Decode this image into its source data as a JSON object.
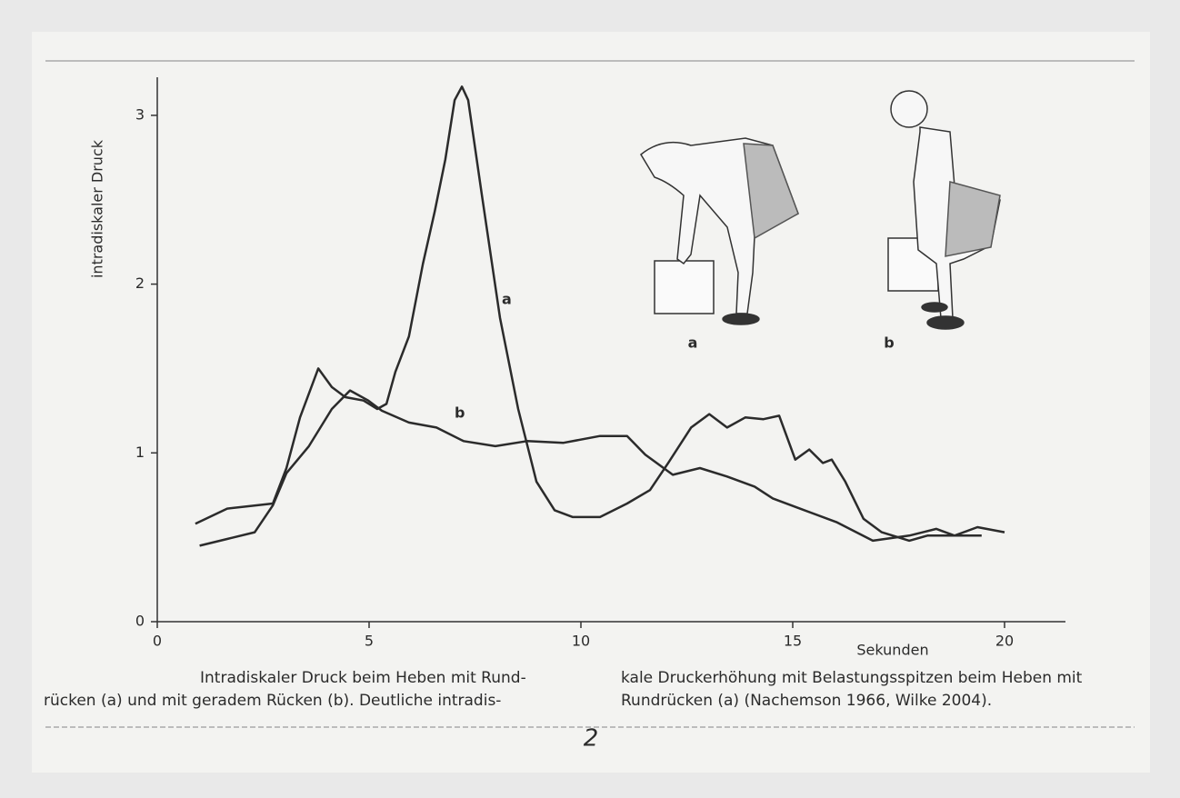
{
  "chart_data": {
    "type": "line",
    "y_label": "intradiskaler Druck",
    "x_label": "Sekunden",
    "xlim": [
      0,
      21.5
    ],
    "ylim": [
      0,
      3.25
    ],
    "xticks": [
      0,
      5,
      10,
      15,
      20
    ],
    "yticks": [
      0,
      1,
      2,
      3
    ],
    "series": [
      {
        "name": "a",
        "color": "#2b2b2b",
        "x": [
          0.9,
          1.65,
          2.73,
          3.05,
          3.37,
          3.8,
          4.12,
          4.44,
          4.87,
          5.19,
          5.41,
          5.62,
          5.94,
          6.27,
          6.55,
          6.8,
          7.02,
          7.19,
          7.34,
          7.66,
          8.09,
          8.52,
          8.95,
          9.38,
          9.81,
          10.45,
          11.09,
          11.63,
          12.06,
          12.6,
          13.03,
          13.45,
          13.88,
          14.31,
          14.68,
          15.06,
          15.39,
          15.71,
          15.92,
          16.24,
          16.67,
          17.1,
          17.75,
          18.18,
          18.82,
          19.46
        ],
        "values": [
          0.58,
          0.67,
          0.7,
          0.91,
          1.21,
          1.5,
          1.39,
          1.33,
          1.31,
          1.26,
          1.29,
          1.48,
          1.69,
          2.12,
          2.43,
          2.74,
          3.09,
          3.17,
          3.09,
          2.53,
          1.8,
          1.26,
          0.83,
          0.66,
          0.62,
          0.62,
          0.7,
          0.78,
          0.94,
          1.15,
          1.23,
          1.15,
          1.21,
          1.2,
          1.22,
          0.96,
          1.02,
          0.94,
          0.96,
          0.83,
          0.61,
          0.53,
          0.48,
          0.51,
          0.51,
          0.51
        ]
      },
      {
        "name": "b",
        "color": "#2b2b2b",
        "x": [
          1.0,
          1.65,
          2.3,
          2.73,
          3.05,
          3.58,
          4.12,
          4.55,
          4.98,
          5.3,
          5.94,
          6.59,
          7.23,
          7.98,
          8.73,
          9.59,
          10.45,
          11.09,
          11.52,
          12.17,
          12.81,
          13.45,
          14.1,
          14.53,
          15.17,
          16.03,
          16.89,
          17.75,
          18.39,
          18.82,
          19.36,
          20.0
        ],
        "values": [
          0.45,
          0.49,
          0.53,
          0.69,
          0.88,
          1.04,
          1.26,
          1.37,
          1.31,
          1.25,
          1.18,
          1.15,
          1.07,
          1.04,
          1.07,
          1.06,
          1.1,
          1.1,
          0.99,
          0.87,
          0.91,
          0.86,
          0.8,
          0.73,
          0.67,
          0.59,
          0.48,
          0.51,
          0.55,
          0.51,
          0.56,
          0.53
        ]
      }
    ],
    "figure_labels": [
      "a",
      "b"
    ],
    "caption": {
      "left": [
        "Intradiskaler Druck beim Heben mit Rund-",
        "rücken (a) und mit geradem Rücken (b). Deutliche intradis-"
      ],
      "right": [
        "kale Druckerhöhung mit Belastungsspitzen beim Heben mit",
        "Rundrücken (a) (Nachemson 1966, Wilke 2004)."
      ]
    },
    "page_number": "2"
  }
}
